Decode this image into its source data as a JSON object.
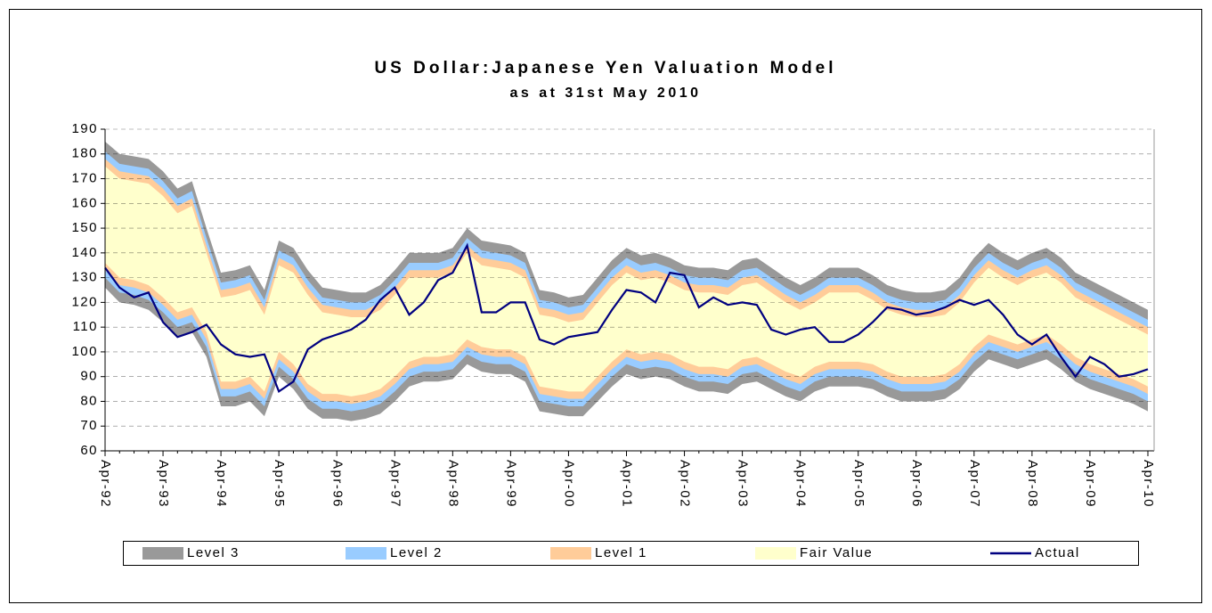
{
  "chart_data": {
    "type": "band",
    "title": "US Dollar:Japanese Yen Valuation Model",
    "subtitle": "as at 31st May 2010",
    "categories": [
      "Apr-92",
      null,
      null,
      null,
      "Apr-93",
      null,
      null,
      null,
      "Apr-94",
      null,
      null,
      null,
      "Apr-95",
      null,
      null,
      null,
      "Apr-96",
      null,
      null,
      null,
      "Apr-97",
      null,
      null,
      null,
      "Apr-98",
      null,
      null,
      null,
      "Apr-99",
      null,
      null,
      null,
      "Apr-00",
      null,
      null,
      null,
      "Apr-01",
      null,
      null,
      null,
      "Apr-02",
      null,
      null,
      null,
      "Apr-03",
      null,
      null,
      null,
      "Apr-04",
      null,
      null,
      null,
      "Apr-05",
      null,
      null,
      null,
      "Apr-06",
      null,
      null,
      null,
      "Apr-07",
      null,
      null,
      null,
      "Apr-08",
      null,
      null,
      null,
      "Apr-09",
      null,
      null,
      null,
      "Apr-10"
    ],
    "ylim": [
      60,
      190
    ],
    "yticks": [
      60,
      70,
      80,
      90,
      100,
      110,
      120,
      130,
      140,
      150,
      160,
      170,
      180,
      190
    ],
    "grid": true,
    "legend": "bottom",
    "series": [
      {
        "name": "Level 3",
        "color": "#999999",
        "upper": [
          185,
          180,
          179,
          178,
          173,
          166,
          169,
          150,
          132,
          133,
          135,
          125,
          145,
          142,
          133,
          126,
          125,
          124,
          124,
          127,
          133,
          140,
          140,
          140,
          142,
          150,
          145,
          144,
          143,
          140,
          125,
          124,
          122,
          123,
          130,
          137,
          142,
          139,
          140,
          138,
          135,
          134,
          134,
          133,
          137,
          138,
          134,
          130,
          127,
          130,
          134,
          134,
          134,
          131,
          127,
          125,
          124,
          124,
          125,
          130,
          138,
          144,
          140,
          137,
          140,
          142,
          138,
          132,
          129,
          126,
          123,
          120,
          117
        ],
        "lower": [
          126,
          120,
          119,
          117,
          112,
          106,
          108,
          98,
          78,
          78,
          80,
          74,
          90,
          85,
          77,
          73,
          73,
          72,
          73,
          75,
          80,
          86,
          88,
          88,
          89,
          95,
          92,
          91,
          91,
          88,
          76,
          75,
          74,
          74,
          80,
          86,
          91,
          89,
          90,
          89,
          86,
          84,
          84,
          83,
          87,
          88,
          85,
          82,
          80,
          84,
          86,
          86,
          86,
          85,
          82,
          80,
          80,
          80,
          81,
          85,
          92,
          97,
          95,
          93,
          95,
          97,
          93,
          88,
          85,
          83,
          81,
          79,
          76
        ]
      },
      {
        "name": "Level 2",
        "color": "#99ccff",
        "upper": [
          181,
          176,
          175,
          174,
          169,
          162,
          165,
          146,
          128,
          129,
          131,
          121,
          141,
          138,
          129,
          122,
          121,
          120,
          120,
          123,
          129,
          136,
          136,
          136,
          138,
          146,
          141,
          140,
          139,
          136,
          121,
          120,
          118,
          119,
          126,
          133,
          138,
          135,
          136,
          134,
          131,
          130,
          130,
          129,
          133,
          134,
          130,
          126,
          123,
          126,
          130,
          130,
          130,
          127,
          123,
          121,
          120,
          120,
          121,
          126,
          134,
          140,
          136,
          133,
          136,
          138,
          134,
          128,
          125,
          122,
          119,
          116,
          113
        ],
        "lower": [
          130,
          124,
          123,
          121,
          116,
          110,
          112,
          102,
          82,
          82,
          84,
          78,
          94,
          89,
          81,
          77,
          77,
          76,
          77,
          79,
          84,
          90,
          92,
          92,
          93,
          99,
          96,
          95,
          95,
          92,
          80,
          79,
          78,
          78,
          84,
          90,
          95,
          93,
          94,
          93,
          90,
          88,
          88,
          87,
          91,
          92,
          89,
          86,
          84,
          88,
          90,
          90,
          90,
          89,
          86,
          84,
          84,
          84,
          85,
          89,
          96,
          101,
          99,
          97,
          99,
          101,
          97,
          92,
          89,
          87,
          85,
          83,
          80
        ]
      },
      {
        "name": "Level 1",
        "color": "#ffcc99",
        "upper": [
          178,
          173,
          172,
          171,
          166,
          159,
          162,
          143,
          125,
          126,
          128,
          118,
          138,
          135,
          126,
          119,
          118,
          117,
          117,
          120,
          126,
          133,
          133,
          133,
          135,
          143,
          138,
          137,
          136,
          133,
          118,
          117,
          115,
          116,
          123,
          130,
          135,
          132,
          133,
          131,
          128,
          127,
          127,
          126,
          130,
          131,
          127,
          123,
          120,
          123,
          127,
          127,
          127,
          124,
          120,
          118,
          117,
          117,
          118,
          123,
          131,
          137,
          133,
          130,
          133,
          135,
          131,
          125,
          122,
          119,
          116,
          113,
          110
        ],
        "lower": [
          133,
          127,
          126,
          124,
          119,
          113,
          115,
          105,
          85,
          85,
          87,
          81,
          97,
          92,
          84,
          80,
          80,
          79,
          80,
          82,
          87,
          93,
          95,
          95,
          96,
          102,
          99,
          98,
          98,
          95,
          83,
          82,
          81,
          81,
          87,
          93,
          98,
          96,
          97,
          96,
          93,
          91,
          91,
          90,
          94,
          95,
          92,
          89,
          87,
          91,
          93,
          93,
          93,
          92,
          89,
          87,
          87,
          87,
          88,
          92,
          99,
          104,
          102,
          100,
          102,
          104,
          100,
          95,
          92,
          90,
          88,
          86,
          83
        ]
      },
      {
        "name": "Fair Value",
        "color": "#ffffcc",
        "upper": [
          175,
          170,
          169,
          168,
          163,
          156,
          159,
          140,
          122,
          123,
          125,
          115,
          135,
          132,
          123,
          116,
          115,
          114,
          114,
          117,
          123,
          130,
          130,
          130,
          132,
          140,
          135,
          134,
          133,
          130,
          115,
          114,
          112,
          113,
          120,
          127,
          132,
          129,
          130,
          128,
          125,
          124,
          124,
          123,
          127,
          128,
          124,
          120,
          117,
          120,
          124,
          124,
          124,
          121,
          117,
          115,
          114,
          114,
          115,
          120,
          128,
          134,
          130,
          127,
          130,
          132,
          128,
          122,
          119,
          116,
          113,
          110,
          107
        ],
        "lower": [
          136,
          130,
          129,
          127,
          122,
          116,
          118,
          108,
          88,
          88,
          90,
          84,
          100,
          95,
          87,
          83,
          83,
          82,
          83,
          85,
          90,
          96,
          98,
          98,
          99,
          105,
          102,
          101,
          101,
          98,
          86,
          85,
          84,
          84,
          90,
          96,
          101,
          99,
          100,
          99,
          96,
          94,
          94,
          93,
          97,
          98,
          95,
          92,
          90,
          94,
          96,
          96,
          96,
          95,
          92,
          90,
          90,
          90,
          91,
          95,
          102,
          107,
          105,
          103,
          105,
          107,
          103,
          98,
          95,
          93,
          91,
          89,
          86
        ]
      },
      {
        "name": "Actual",
        "color": "#000080",
        "values": [
          134,
          126,
          122,
          124,
          112,
          106,
          108,
          111,
          103,
          99,
          98,
          99,
          84,
          88,
          101,
          105,
          107,
          109,
          113,
          121,
          126,
          115,
          120,
          129,
          132,
          143,
          116,
          116,
          120,
          120,
          105,
          103,
          106,
          107,
          108,
          117,
          125,
          124,
          120,
          132,
          131,
          118,
          122,
          119,
          120,
          119,
          109,
          107,
          109,
          110,
          104,
          104,
          107,
          112,
          118,
          117,
          115,
          116,
          118,
          121,
          119,
          121,
          115,
          107,
          103,
          107,
          98,
          90,
          98,
          95,
          90,
          91,
          93
        ]
      }
    ]
  }
}
